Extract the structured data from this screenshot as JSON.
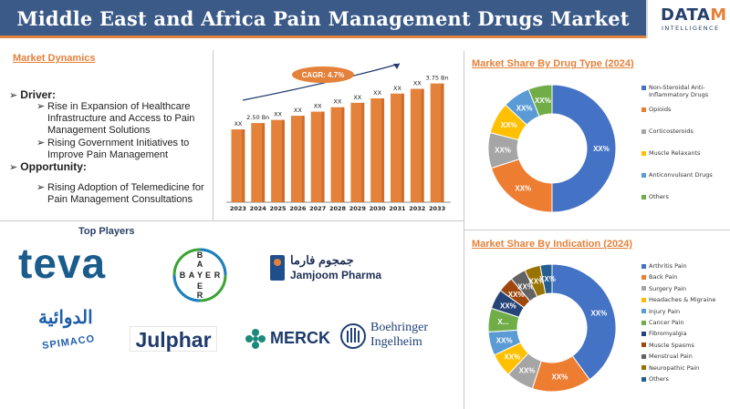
{
  "header": {
    "title": "Middle East and Africa Pain Management Drugs Market",
    "logo_main": "DATA",
    "logo_accent": "M",
    "logo_tail": "",
    "logo_sub": "INTELLIGENCE"
  },
  "dynamics": {
    "title": "Market Dynamics",
    "driver_head": "Driver:",
    "driver_items": [
      "Rise in Expansion of Healthcare Infrastructure and Access to Pain Management Solutions",
      "Rising Government Initiatives to Improve Pain Management"
    ],
    "opportunity_head": "Opportunity:",
    "opportunity_items": [
      "Rising Adoption of Telemedicine for Pain Management Consultations"
    ]
  },
  "players": {
    "title": "Top Players",
    "names": [
      "teva",
      "BAYER",
      "Jamjoom Pharma",
      "SPIMACO",
      "Julphar",
      "MERCK",
      "Boehringer Ingelheim"
    ],
    "jamjoom_arabic": "جمجوم فارما",
    "spimaco_arabic": "الدوائية",
    "bayer_letters": [
      "B",
      "A",
      "Y",
      "E",
      "R"
    ]
  },
  "chart_data": [
    {
      "type": "bar",
      "categories": [
        "2023",
        "2024",
        "2025",
        "2026",
        "2027",
        "2028",
        "2029",
        "2030",
        "2031",
        "2032",
        "2033"
      ],
      "values": [
        2.3,
        2.5,
        2.6,
        2.73,
        2.86,
        3.0,
        3.14,
        3.28,
        3.43,
        3.58,
        3.75
      ],
      "data_labels": [
        "XX",
        "2.50 Bn",
        "XX",
        "XX",
        "XX",
        "XX",
        "XX",
        "XX",
        "XX",
        "XX",
        "3.75 Bn"
      ],
      "cagr_label": "CAGR: 4.7%",
      "ylim": [
        0,
        4.2
      ],
      "color": "#e4813a"
    },
    {
      "type": "pie",
      "title": "Market Share By Drug Type (2024)",
      "labels": [
        "Non-Steroidal Anti-Inflammatory Drugs",
        "Opioids",
        "Corticosteroids",
        "Muscle Relaxants",
        "Anticonvulsant Drugs",
        "Others"
      ],
      "values": [
        50,
        20,
        9,
        8,
        7,
        6
      ],
      "slice_labels": [
        "XX%",
        "XX%",
        "XX%",
        "XX%",
        "XX%",
        "XX%"
      ],
      "colors": [
        "#4472c4",
        "#ed7d31",
        "#a5a5a5",
        "#ffc000",
        "#5b9bd5",
        "#70ad47"
      ],
      "legend": "right"
    },
    {
      "type": "pie",
      "title": "Market Share By Indication (2024)",
      "labels": [
        "Arthritis Pain",
        "Back Pain",
        "Surgery Pain",
        "Headaches & Migraine",
        "Injury Pain",
        "Cancer Pain",
        "Fibromyalgia",
        "Muscle Spasms",
        "Menstrual Pain",
        "Neuropathic Pain",
        "Others"
      ],
      "values": [
        40,
        15,
        7,
        6,
        6,
        6,
        5,
        4,
        4,
        4,
        3
      ],
      "slice_labels": [
        "XX%",
        "XX%",
        "XX%",
        "XX%",
        "XX%",
        "X...",
        "XX%",
        "XX%",
        "XX%",
        "XX%",
        "XX%"
      ],
      "colors": [
        "#4472c4",
        "#ed7d31",
        "#a5a5a5",
        "#ffc000",
        "#5b9bd5",
        "#70ad47",
        "#264478",
        "#9e480e",
        "#636363",
        "#997300",
        "#255e91"
      ],
      "legend": "right"
    }
  ]
}
